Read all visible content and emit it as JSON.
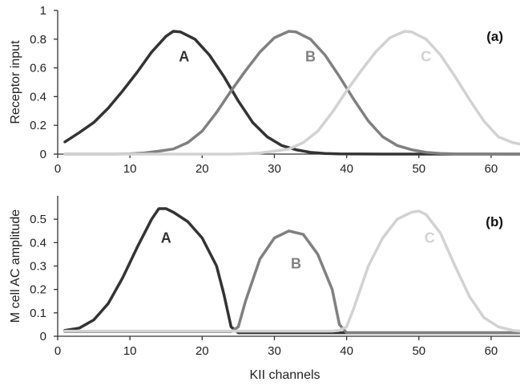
{
  "chart_data": [
    {
      "type": "line",
      "panel_label": "(a)",
      "ylabel": "Receptor input",
      "xlabel": "",
      "xlim": [
        0,
        64
      ],
      "ylim": [
        0,
        1
      ],
      "xticks": [
        0,
        10,
        20,
        30,
        40,
        50,
        60
      ],
      "yticks": [
        0,
        0.2,
        0.4,
        0.6,
        0.8,
        1
      ],
      "ytick_labels": [
        "0",
        "0.2",
        "0.4",
        "0.6",
        "0.8",
        "1"
      ],
      "grid": false,
      "series": [
        {
          "name": "A",
          "color": "#333333",
          "label_pos": [
            17.5,
            0.68
          ],
          "points": [
            [
              1,
              0.085
            ],
            [
              3,
              0.15
            ],
            [
              5,
              0.22
            ],
            [
              7,
              0.32
            ],
            [
              9,
              0.44
            ],
            [
              11,
              0.57
            ],
            [
              13,
              0.71
            ],
            [
              15,
              0.82
            ],
            [
              16,
              0.855
            ],
            [
              17,
              0.85
            ],
            [
              19,
              0.8
            ],
            [
              21,
              0.69
            ],
            [
              23,
              0.54
            ],
            [
              25,
              0.37
            ],
            [
              27,
              0.22
            ],
            [
              29,
              0.12
            ],
            [
              31,
              0.06
            ],
            [
              33,
              0.03
            ],
            [
              35,
              0.012
            ],
            [
              37,
              0.004
            ],
            [
              39,
              0.001
            ],
            [
              45,
              0
            ],
            [
              55,
              0
            ],
            [
              64,
              0
            ]
          ]
        },
        {
          "name": "B",
          "color": "#808080",
          "label_pos": [
            35,
            0.68
          ],
          "points": [
            [
              1,
              0
            ],
            [
              8,
              0
            ],
            [
              10,
              0.002
            ],
            [
              12,
              0.008
            ],
            [
              14,
              0.02
            ],
            [
              16,
              0.035
            ],
            [
              18,
              0.08
            ],
            [
              20,
              0.16
            ],
            [
              22,
              0.29
            ],
            [
              24,
              0.44
            ],
            [
              26,
              0.58
            ],
            [
              28,
              0.71
            ],
            [
              30,
              0.81
            ],
            [
              32,
              0.855
            ],
            [
              33,
              0.85
            ],
            [
              35,
              0.8
            ],
            [
              37,
              0.69
            ],
            [
              39,
              0.54
            ],
            [
              41,
              0.38
            ],
            [
              43,
              0.23
            ],
            [
              45,
              0.12
            ],
            [
              47,
              0.06
            ],
            [
              49,
              0.03
            ],
            [
              51,
              0.012
            ],
            [
              53,
              0.004
            ],
            [
              55,
              0.001
            ],
            [
              64,
              0
            ]
          ]
        },
        {
          "name": "C",
          "color": "#d2d2d2",
          "label_pos": [
            51,
            0.68
          ],
          "points": [
            [
              1,
              0
            ],
            [
              24,
              0
            ],
            [
              26,
              0.002
            ],
            [
              28,
              0.008
            ],
            [
              30,
              0.02
            ],
            [
              32,
              0.035
            ],
            [
              34,
              0.08
            ],
            [
              36,
              0.16
            ],
            [
              38,
              0.29
            ],
            [
              40,
              0.44
            ],
            [
              42,
              0.58
            ],
            [
              44,
              0.71
            ],
            [
              46,
              0.81
            ],
            [
              48,
              0.855
            ],
            [
              49,
              0.85
            ],
            [
              51,
              0.8
            ],
            [
              53,
              0.69
            ],
            [
              55,
              0.54
            ],
            [
              57,
              0.38
            ],
            [
              59,
              0.23
            ],
            [
              61,
              0.12
            ],
            [
              63,
              0.08
            ],
            [
              64,
              0.07
            ]
          ]
        }
      ]
    },
    {
      "type": "line",
      "panel_label": "(b)",
      "ylabel": "M cell AC amplitude",
      "xlabel": "KII channels",
      "xlim": [
        0,
        64
      ],
      "ylim": [
        0,
        0.6
      ],
      "xticks": [
        0,
        10,
        20,
        30,
        40,
        50,
        60
      ],
      "yticks": [
        0,
        0.1,
        0.2,
        0.3,
        0.4,
        0.5
      ],
      "ytick_labels": [
        "0",
        "0.1",
        "0.2",
        "0.3",
        "0.4",
        "0.5"
      ],
      "grid": false,
      "series": [
        {
          "name": "A",
          "color": "#333333",
          "label_pos": [
            15,
            0.42
          ],
          "points": [
            [
              1,
              0.025
            ],
            [
              3,
              0.035
            ],
            [
              5,
              0.07
            ],
            [
              7,
              0.14
            ],
            [
              9,
              0.25
            ],
            [
              11,
              0.38
            ],
            [
              13,
              0.5
            ],
            [
              14,
              0.545
            ],
            [
              15,
              0.545
            ],
            [
              16,
              0.53
            ],
            [
              18,
              0.49
            ],
            [
              20,
              0.42
            ],
            [
              22,
              0.3
            ],
            [
              23,
              0.18
            ],
            [
              24,
              0.04
            ],
            [
              25,
              0.015
            ],
            [
              40,
              0.015
            ],
            [
              64,
              0.015
            ]
          ]
        },
        {
          "name": "B",
          "color": "#808080",
          "label_pos": [
            33,
            0.31
          ],
          "points": [
            [
              1,
              0.02
            ],
            [
              24,
              0.02
            ],
            [
              25,
              0.04
            ],
            [
              26,
              0.15
            ],
            [
              28,
              0.33
            ],
            [
              30,
              0.42
            ],
            [
              32,
              0.45
            ],
            [
              34,
              0.435
            ],
            [
              36,
              0.35
            ],
            [
              38,
              0.2
            ],
            [
              39,
              0.05
            ],
            [
              40,
              0.015
            ],
            [
              64,
              0.015
            ]
          ]
        },
        {
          "name": "C",
          "color": "#d2d2d2",
          "label_pos": [
            51.5,
            0.42
          ],
          "points": [
            [
              1,
              0.022
            ],
            [
              38,
              0.022
            ],
            [
              39,
              0.025
            ],
            [
              40,
              0.04
            ],
            [
              41,
              0.12
            ],
            [
              43,
              0.3
            ],
            [
              45,
              0.42
            ],
            [
              47,
              0.5
            ],
            [
              49,
              0.53
            ],
            [
              50,
              0.535
            ],
            [
              51,
              0.52
            ],
            [
              53,
              0.44
            ],
            [
              55,
              0.3
            ],
            [
              57,
              0.17
            ],
            [
              59,
              0.08
            ],
            [
              61,
              0.04
            ],
            [
              63,
              0.025
            ],
            [
              64,
              0.022
            ]
          ]
        }
      ]
    }
  ]
}
